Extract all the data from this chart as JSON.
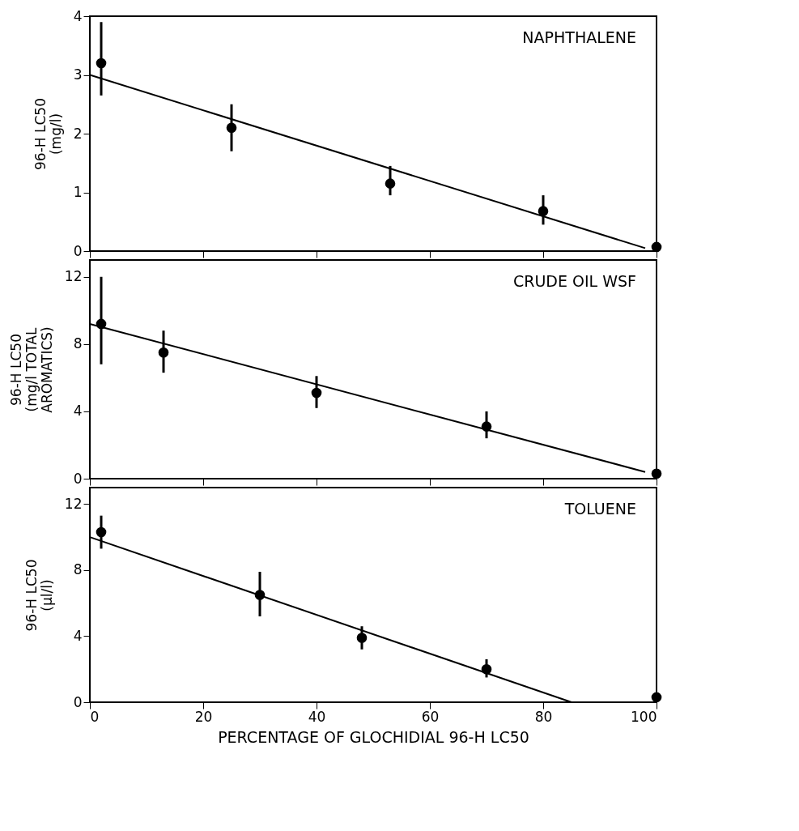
{
  "chart_data": [
    {
      "type": "scatter",
      "ylabel": "96-H LC50\n(mg/l)",
      "annotations": [
        "NAPHTHALENE"
      ],
      "xlim": [
        0,
        100
      ],
      "xticks": [
        0,
        20,
        40,
        60,
        80,
        100
      ],
      "ylim": [
        0,
        4
      ],
      "yticks": [
        0,
        1,
        2,
        3,
        4
      ],
      "grid": false,
      "tick_labels": "y",
      "marker": "circle",
      "series": [
        {
          "type": "scatter",
          "color": "#000000",
          "x": [
            2,
            25,
            53,
            80,
            100
          ],
          "values": [
            3.2,
            2.1,
            1.15,
            0.68,
            0.07
          ],
          "errors": [
            [
              2.65,
              3.9
            ],
            [
              1.7,
              2.5
            ],
            [
              0.95,
              1.45
            ],
            [
              0.45,
              0.95
            ],
            null
          ]
        },
        {
          "type": "line",
          "marker": "none",
          "color": "#000000",
          "x": [
            0,
            98
          ],
          "values": [
            3.0,
            0.05
          ]
        }
      ]
    },
    {
      "type": "scatter",
      "ylabel": "96-H LC50\n(mg/l TOTAL\nAROMATICS)",
      "annotations": [
        "CRUDE OIL WSF"
      ],
      "xlim": [
        0,
        100
      ],
      "xticks": [
        0,
        20,
        40,
        60,
        80,
        100
      ],
      "ylim": [
        0,
        13
      ],
      "yticks": [
        0,
        4,
        8,
        12
      ],
      "grid": false,
      "tick_labels": "y",
      "marker": "circle",
      "series": [
        {
          "type": "scatter",
          "color": "#000000",
          "x": [
            2,
            13,
            40,
            70,
            100
          ],
          "values": [
            9.2,
            7.5,
            5.1,
            3.1,
            0.3
          ],
          "errors": [
            [
              6.8,
              12
            ],
            [
              6.3,
              8.8
            ],
            [
              4.2,
              6.1
            ],
            [
              2.4,
              4.0
            ],
            null
          ]
        },
        {
          "type": "line",
          "marker": "none",
          "color": "#000000",
          "x": [
            0,
            98
          ],
          "values": [
            9.2,
            0.4
          ]
        }
      ]
    },
    {
      "type": "scatter",
      "ylabel": "96-H LC50\n(µl/l)",
      "xlabel": "PERCENTAGE OF GLOCHIDIAL 96-H LC50",
      "annotations": [
        "TOLUENE"
      ],
      "xlim": [
        0,
        100
      ],
      "xticks": [
        0,
        20,
        40,
        60,
        80,
        100
      ],
      "ylim": [
        0,
        13
      ],
      "yticks": [
        0,
        4,
        8,
        12
      ],
      "grid": false,
      "marker": "circle",
      "series": [
        {
          "type": "scatter",
          "color": "#000000",
          "x": [
            2,
            30,
            48,
            70,
            100
          ],
          "values": [
            10.3,
            6.5,
            3.9,
            2.0,
            0.3
          ],
          "errors": [
            [
              9.3,
              11.3
            ],
            [
              5.2,
              7.9
            ],
            [
              3.2,
              4.6
            ],
            [
              1.5,
              2.6
            ],
            null
          ]
        },
        {
          "type": "line",
          "marker": "none",
          "color": "#000000",
          "x": [
            0,
            85
          ],
          "values": [
            10.0,
            0
          ]
        }
      ]
    }
  ]
}
